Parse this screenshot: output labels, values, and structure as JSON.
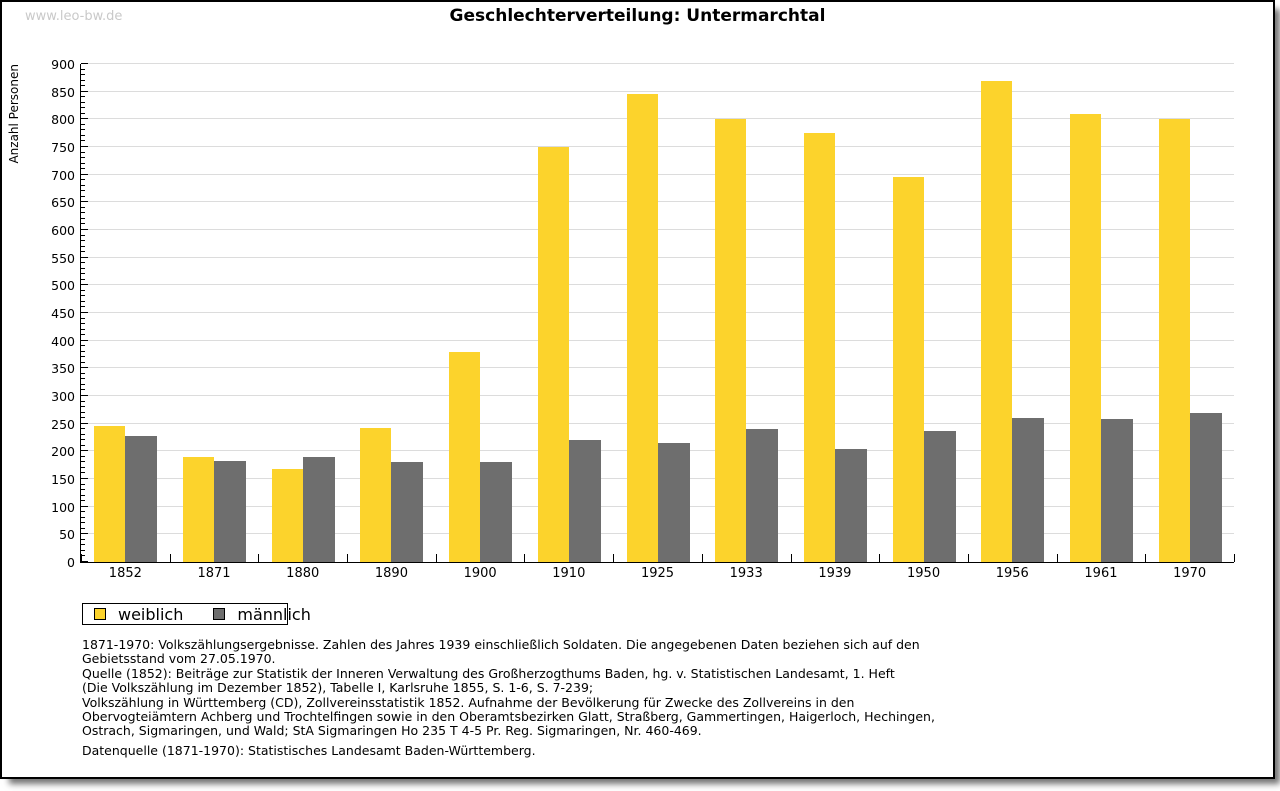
{
  "page": {
    "watermark": "www.leo-bw.de"
  },
  "chart_data": {
    "type": "bar",
    "title": "Geschlechterverteilung: Untermarchtal",
    "ylabel": "Anzahl Personen",
    "xlabel": "",
    "categories": [
      "1852",
      "1871",
      "1880",
      "1890",
      "1900",
      "1910",
      "1925",
      "1933",
      "1939",
      "1950",
      "1956",
      "1961",
      "1970"
    ],
    "series": [
      {
        "name": "weiblich",
        "color": "#FCD32C",
        "values": [
          245,
          190,
          168,
          243,
          380,
          750,
          845,
          800,
          775,
          695,
          870,
          810,
          800
        ]
      },
      {
        "name": "männlich",
        "color": "#6E6E6E",
        "values": [
          227,
          182,
          190,
          180,
          180,
          220,
          215,
          240,
          205,
          237,
          261,
          259,
          270
        ]
      }
    ],
    "ylim": [
      0,
      900
    ],
    "ytick_step": 50,
    "minor_tick_step": 10,
    "grid": true,
    "gridline_color": "#dcdcdc",
    "legend_position": "bottom-left"
  },
  "footnotes": {
    "lines": [
      "1871-1970: Volkszählungsergebnisse. Zahlen des Jahres 1939 einschließlich Soldaten. Die angegebenen Daten beziehen sich auf den",
      "Gebietsstand vom 27.05.1970.",
      "Quelle (1852): Beiträge zur Statistik der Inneren Verwaltung des Großherzogthums Baden, hg. v. Statistischen Landesamt, 1. Heft",
      "(Die Volkszählung im Dezember 1852), Tabelle I, Karlsruhe 1855, S. 1-6, S. 7-239;",
      "Volkszählung in Württemberg (CD), Zollvereinsstatistik 1852. Aufnahme der Bevölkerung für Zwecke des Zollvereins in den",
      "Obervogteiämtern Achberg und Trochtelfingen sowie in den Oberamtsbezirken Glatt, Straßberg, Gammertingen, Haigerloch, Hechingen,",
      "Ostrach, Sigmaringen, und Wald; StA Sigmaringen Ho 235 T 4-5 Pr. Reg. Sigmaringen, Nr. 460-469."
    ],
    "source_line": "Datenquelle (1871-1970): Statistisches Landesamt Baden-Württemberg."
  }
}
